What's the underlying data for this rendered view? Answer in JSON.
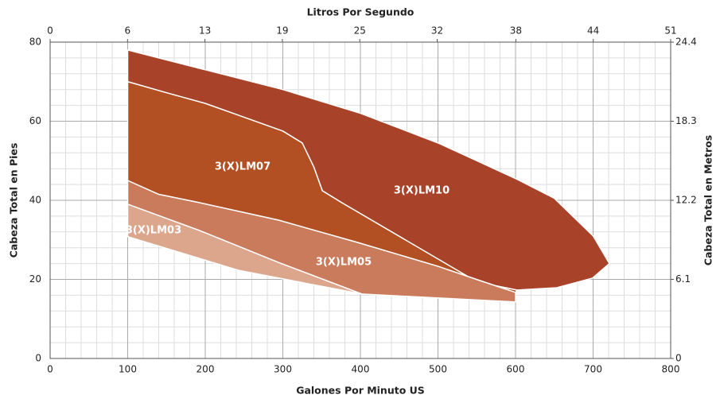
{
  "chart_data": {
    "type": "area",
    "x_label": "Galones Por Minuto US",
    "x2_label": "Litros Por Segundo",
    "y_label": "Cabeza Total en Pies",
    "y2_label": "Cabeza Total en Metros",
    "xlim": [
      0,
      800
    ],
    "xticks": [
      0,
      100,
      200,
      300,
      400,
      500,
      600,
      700,
      800
    ],
    "x2lim": [
      0,
      50.5
    ],
    "x2ticks": [
      0,
      {
        "value": 6.3,
        "label": "6"
      },
      {
        "value": 12.6,
        "label": "13"
      },
      {
        "value": 18.9,
        "label": "19"
      },
      {
        "value": 25.2,
        "label": "25"
      },
      {
        "value": 31.5,
        "label": "32"
      },
      {
        "value": 37.9,
        "label": "38"
      },
      {
        "value": 44.2,
        "label": "44"
      },
      {
        "value": 50.5,
        "label": "51"
      }
    ],
    "ylim": [
      0,
      80
    ],
    "yticks": [
      0,
      20,
      40,
      60,
      80
    ],
    "y2lim": [
      0,
      24.4
    ],
    "y2ticks": [
      0,
      6.1,
      12.2,
      18.3,
      24.4
    ],
    "grid": true,
    "series": [
      {
        "name": "3(X)LM10",
        "color": "#a84228",
        "x": [
          100,
          200,
          300,
          400,
          500,
          550,
          600,
          650,
          700,
          721,
          699,
          653,
          602,
          551,
          376,
          351,
          340,
          325,
          300,
          243,
          200,
          150,
          100
        ],
        "values": [
          78,
          73,
          68,
          62,
          54.5,
          50,
          45.5,
          40.5,
          31,
          24,
          20.3,
          17.9,
          17.3,
          19.3,
          39.4,
          42.4,
          48.4,
          54.5,
          57.5,
          61.5,
          64.5,
          67.2,
          70
        ]
      },
      {
        "name": "3(X)LM07",
        "color": "#b35023",
        "x": [
          100,
          150,
          200,
          243,
          300,
          325,
          340,
          351,
          376,
          551,
          602,
          600,
          551,
          500,
          397,
          294,
          190,
          140,
          100
        ],
        "values": [
          70,
          67.2,
          64.5,
          61.5,
          57.5,
          54.5,
          48.4,
          42.4,
          39.4,
          19.3,
          17.3,
          16.7,
          19.9,
          23.3,
          29.3,
          35,
          39.5,
          41.5,
          45
        ]
      },
      {
        "name": "3(X)LM05",
        "color": "#c97b5b",
        "x": [
          100,
          140,
          190,
          294,
          397,
          500,
          551,
          600,
          600,
          402,
          294,
          192,
          100
        ],
        "values": [
          45,
          41.5,
          39.5,
          35,
          29.3,
          23.3,
          19.9,
          16.7,
          14.3,
          16.3,
          24.3,
          32.4,
          39
        ]
      },
      {
        "name": "3(X)LM03",
        "color": "#dca68d",
        "x": [
          100,
          192,
          294,
          402,
          330,
          243,
          100
        ],
        "values": [
          39,
          32.4,
          24.3,
          16.3,
          19,
          22.3,
          30.8
        ]
      }
    ]
  }
}
